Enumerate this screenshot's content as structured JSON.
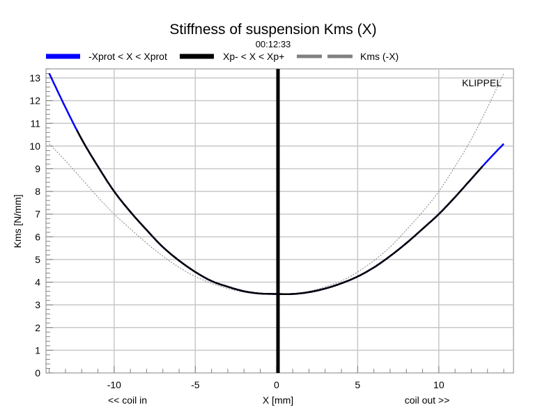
{
  "chart_data": {
    "type": "line",
    "title": "Stiffness of suspension Kms (X)",
    "subtitle": "00:12:33",
    "xlabel": "X [mm]",
    "xlabel_left": "<< coil in",
    "xlabel_right": "coil out >>",
    "ylabel": "Kms [N/mm]",
    "brand": "KLIPPEL",
    "xlim": [
      -14.2,
      14.6
    ],
    "ylim": [
      0,
      13.4
    ],
    "xticks": [
      -10,
      -5,
      0,
      5,
      10
    ],
    "yticks": [
      0,
      1,
      2,
      3,
      4,
      5,
      6,
      7,
      8,
      9,
      10,
      11,
      12,
      13
    ],
    "grid": true,
    "legend_position": "top",
    "legend": [
      {
        "label": "-Xprot < X < Xprot",
        "color": "#0000ff",
        "style": "solid"
      },
      {
        "label": "Xp- < X < Xp+",
        "color": "#000000",
        "style": "solid"
      },
      {
        "label": "Kms (-X)",
        "color": "#808080",
        "style": "dashed"
      }
    ],
    "markers": {
      "Xp_minus": -12.3,
      "Xp_plus": 12.7
    },
    "series": [
      {
        "name": "Kms (X)",
        "x": [
          -14,
          -13,
          -12,
          -11,
          -10,
          -9,
          -8,
          -7,
          -6,
          -5,
          -4,
          -3,
          -2,
          -1,
          0,
          1,
          2,
          3,
          4,
          5,
          6,
          7,
          8,
          9,
          10,
          11,
          12,
          13,
          14
        ],
        "y": [
          13.2,
          11.7,
          10.3,
          9.1,
          8.0,
          7.1,
          6.3,
          5.55,
          4.95,
          4.45,
          4.05,
          3.8,
          3.6,
          3.5,
          3.48,
          3.48,
          3.56,
          3.72,
          3.95,
          4.25,
          4.65,
          5.15,
          5.72,
          6.35,
          7.0,
          7.75,
          8.55,
          9.35,
          10.1
        ]
      },
      {
        "name": "Kms (-X)",
        "x": [
          -14,
          -13,
          -12,
          -11,
          -10,
          -9,
          -8,
          -7,
          -6,
          -5,
          -4,
          -3,
          -2,
          -1,
          0,
          1,
          2,
          3,
          4,
          5,
          6,
          7,
          8,
          9,
          10,
          11,
          12,
          13,
          14
        ],
        "y": [
          10.1,
          9.35,
          8.55,
          7.75,
          7.0,
          6.35,
          5.72,
          5.15,
          4.65,
          4.25,
          3.95,
          3.72,
          3.56,
          3.48,
          3.48,
          3.5,
          3.6,
          3.8,
          4.05,
          4.45,
          4.95,
          5.55,
          6.3,
          7.1,
          8.0,
          9.1,
          10.3,
          11.7,
          13.2
        ]
      }
    ]
  }
}
